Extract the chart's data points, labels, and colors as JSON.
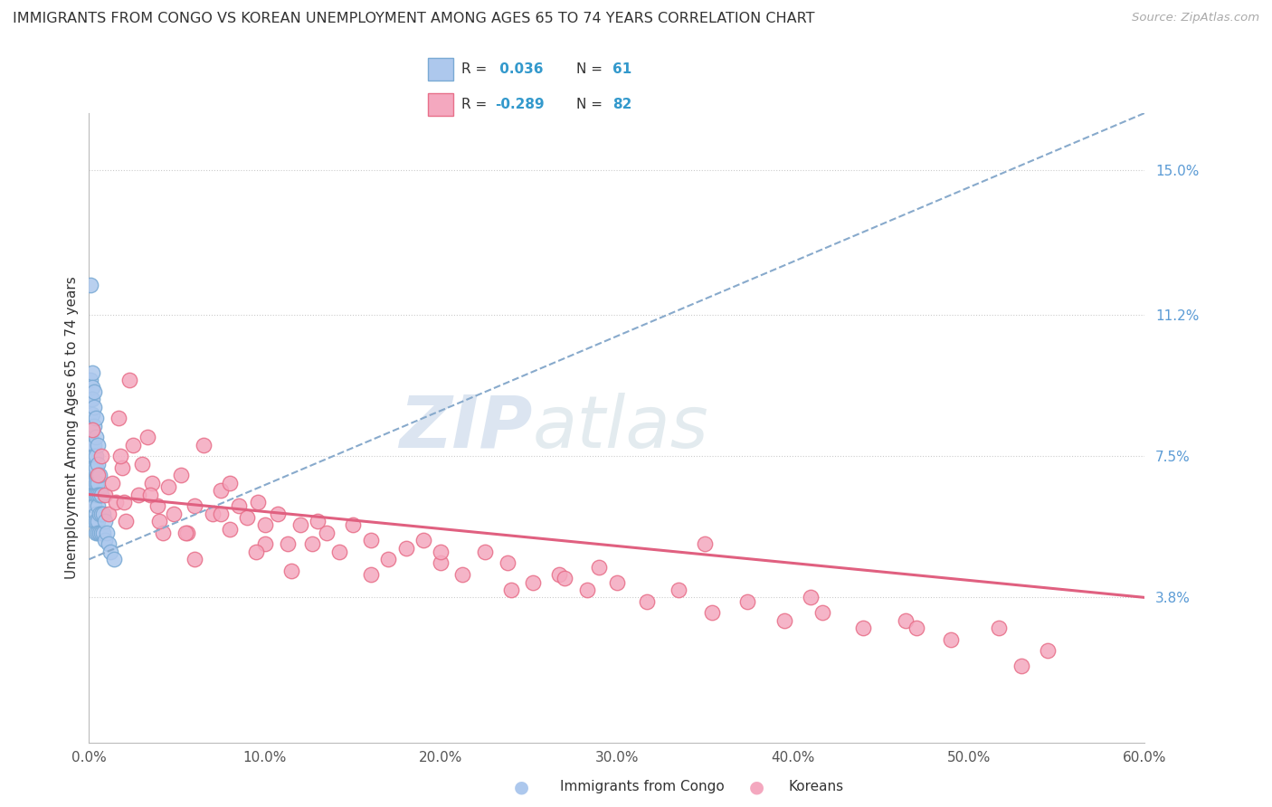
{
  "title": "IMMIGRANTS FROM CONGO VS KOREAN UNEMPLOYMENT AMONG AGES 65 TO 74 YEARS CORRELATION CHART",
  "source": "Source: ZipAtlas.com",
  "ylabel": "Unemployment Among Ages 65 to 74 years",
  "xlim": [
    0.0,
    0.6
  ],
  "ylim": [
    0.0,
    0.165
  ],
  "yticks": [
    0.038,
    0.075,
    0.112,
    0.15
  ],
  "ytick_labels": [
    "3.8%",
    "7.5%",
    "11.2%",
    "15.0%"
  ],
  "xticks": [
    0.0,
    0.1,
    0.2,
    0.3,
    0.4,
    0.5,
    0.6
  ],
  "xtick_labels": [
    "0.0%",
    "10.0%",
    "20.0%",
    "30.0%",
    "40.0%",
    "50.0%",
    "60.0%"
  ],
  "congo_color": "#adc8ed",
  "congo_edge_color": "#7aaad4",
  "korean_color": "#f4a8bf",
  "korean_edge_color": "#e8708a",
  "congo_line_color": "#88aacc",
  "korean_line_color": "#e06080",
  "background_color": "#ffffff",
  "grid_color": "#cccccc",
  "title_fontsize": 11.5,
  "tick_fontsize": 11,
  "watermark_color": "#d8e4f0",
  "congo_R": 0.036,
  "korean_R": -0.289,
  "congo_N": 61,
  "korean_N": 82,
  "congo_scatter_x": [
    0.001,
    0.001,
    0.001,
    0.001,
    0.001,
    0.001,
    0.001,
    0.001,
    0.001,
    0.001,
    0.002,
    0.002,
    0.002,
    0.002,
    0.002,
    0.002,
    0.002,
    0.002,
    0.002,
    0.002,
    0.003,
    0.003,
    0.003,
    0.003,
    0.003,
    0.003,
    0.003,
    0.003,
    0.003,
    0.003,
    0.004,
    0.004,
    0.004,
    0.004,
    0.004,
    0.004,
    0.004,
    0.004,
    0.004,
    0.005,
    0.005,
    0.005,
    0.005,
    0.005,
    0.005,
    0.005,
    0.006,
    0.006,
    0.006,
    0.006,
    0.007,
    0.007,
    0.007,
    0.008,
    0.008,
    0.009,
    0.009,
    0.01,
    0.011,
    0.012,
    0.014
  ],
  "congo_scatter_y": [
    0.12,
    0.095,
    0.09,
    0.085,
    0.083,
    0.08,
    0.078,
    0.075,
    0.072,
    0.068,
    0.097,
    0.093,
    0.09,
    0.086,
    0.082,
    0.078,
    0.075,
    0.072,
    0.068,
    0.065,
    0.092,
    0.088,
    0.083,
    0.078,
    0.075,
    0.072,
    0.068,
    0.065,
    0.062,
    0.058,
    0.085,
    0.08,
    0.075,
    0.072,
    0.068,
    0.065,
    0.06,
    0.058,
    0.055,
    0.078,
    0.073,
    0.068,
    0.065,
    0.062,
    0.058,
    0.055,
    0.07,
    0.065,
    0.06,
    0.055,
    0.065,
    0.06,
    0.055,
    0.06,
    0.055,
    0.058,
    0.053,
    0.055,
    0.052,
    0.05,
    0.048
  ],
  "korean_scatter_x": [
    0.002,
    0.005,
    0.007,
    0.009,
    0.011,
    0.013,
    0.015,
    0.017,
    0.019,
    0.021,
    0.023,
    0.025,
    0.028,
    0.03,
    0.033,
    0.036,
    0.039,
    0.042,
    0.045,
    0.048,
    0.052,
    0.056,
    0.06,
    0.065,
    0.07,
    0.075,
    0.08,
    0.085,
    0.09,
    0.096,
    0.1,
    0.107,
    0.113,
    0.12,
    0.127,
    0.135,
    0.142,
    0.15,
    0.16,
    0.17,
    0.18,
    0.19,
    0.2,
    0.212,
    0.225,
    0.238,
    0.252,
    0.267,
    0.283,
    0.3,
    0.317,
    0.335,
    0.354,
    0.374,
    0.395,
    0.417,
    0.44,
    0.464,
    0.49,
    0.517,
    0.545,
    0.02,
    0.04,
    0.06,
    0.08,
    0.1,
    0.13,
    0.16,
    0.2,
    0.24,
    0.29,
    0.35,
    0.41,
    0.47,
    0.53,
    0.018,
    0.035,
    0.055,
    0.075,
    0.095,
    0.115,
    0.27
  ],
  "korean_scatter_y": [
    0.082,
    0.07,
    0.075,
    0.065,
    0.06,
    0.068,
    0.063,
    0.085,
    0.072,
    0.058,
    0.095,
    0.078,
    0.065,
    0.073,
    0.08,
    0.068,
    0.062,
    0.055,
    0.067,
    0.06,
    0.07,
    0.055,
    0.062,
    0.078,
    0.06,
    0.066,
    0.056,
    0.062,
    0.059,
    0.063,
    0.057,
    0.06,
    0.052,
    0.057,
    0.052,
    0.055,
    0.05,
    0.057,
    0.053,
    0.048,
    0.051,
    0.053,
    0.047,
    0.044,
    0.05,
    0.047,
    0.042,
    0.044,
    0.04,
    0.042,
    0.037,
    0.04,
    0.034,
    0.037,
    0.032,
    0.034,
    0.03,
    0.032,
    0.027,
    0.03,
    0.024,
    0.063,
    0.058,
    0.048,
    0.068,
    0.052,
    0.058,
    0.044,
    0.05,
    0.04,
    0.046,
    0.052,
    0.038,
    0.03,
    0.02,
    0.075,
    0.065,
    0.055,
    0.06,
    0.05,
    0.045,
    0.043
  ],
  "congo_trend_x": [
    0.0,
    0.6
  ],
  "congo_trend_y": [
    0.048,
    0.165
  ],
  "korean_trend_x": [
    0.0,
    0.6
  ],
  "korean_trend_y": [
    0.065,
    0.038
  ]
}
